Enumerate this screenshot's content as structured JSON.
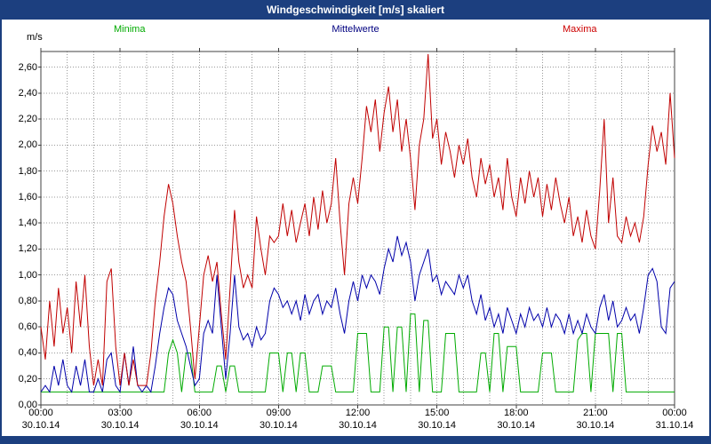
{
  "header": {
    "title": "Windgeschwindigkeit [m/s] skaliert"
  },
  "colors": {
    "title_bar": "#1c3f7f",
    "grid": "#9a9a9a",
    "frame": "#404040",
    "background": "#ffffff"
  },
  "legend": [
    {
      "label": "Minima",
      "color": "#00aa00"
    },
    {
      "label": "Mittelwerte",
      "color": "#000080"
    },
    {
      "label": "Maxima",
      "color": "#cc0000"
    }
  ],
  "chart_data": {
    "type": "line",
    "title": "Windgeschwindigkeit [m/s] skaliert",
    "ylabel": "m/s",
    "xlabel": "",
    "ylim": [
      0,
      2.72
    ],
    "ytick_step": 0.2,
    "grid": "dotted",
    "legend_position": "top",
    "yticks": [
      "0,00",
      "0,20",
      "0,40",
      "0,60",
      "0,80",
      "1,00",
      "1,20",
      "1,40",
      "1,60",
      "1,80",
      "2,00",
      "2,20",
      "2,40",
      "2,60"
    ],
    "x_hours_range": [
      0,
      24
    ],
    "x_minor_grid_hours": 1,
    "xticks": [
      {
        "hour": 0,
        "time": "00:00",
        "date": "30.10.14"
      },
      {
        "hour": 3,
        "time": "03:00",
        "date": "30.10.14"
      },
      {
        "hour": 6,
        "time": "06:00",
        "date": "30.10.14"
      },
      {
        "hour": 9,
        "time": "09:00",
        "date": "30.10.14"
      },
      {
        "hour": 12,
        "time": "12:00",
        "date": "30.10.14"
      },
      {
        "hour": 15,
        "time": "15:00",
        "date": "30.10.14"
      },
      {
        "hour": 18,
        "time": "18:00",
        "date": "30.10.14"
      },
      {
        "hour": 21,
        "time": "21:00",
        "date": "30.10.14"
      },
      {
        "hour": 24,
        "time": "00:00",
        "date": "31.10.14"
      }
    ],
    "series": [
      {
        "name": "Minima",
        "id": "minima",
        "color": "#00aa00",
        "values": [
          0.1,
          0.1,
          0.1,
          0.1,
          0.1,
          0.1,
          0.1,
          0.1,
          0.1,
          0.1,
          0.1,
          0.1,
          0.1,
          0.1,
          0.1,
          0.1,
          0.1,
          0.1,
          0.1,
          0.1,
          0.1,
          0.1,
          0.1,
          0.1,
          0.1,
          0.1,
          0.1,
          0.1,
          0.1,
          0.4,
          0.5,
          0.4,
          0.1,
          0.4,
          0.4,
          0.1,
          0.1,
          0.1,
          0.1,
          0.1,
          0.3,
          0.3,
          0.1,
          0.3,
          0.3,
          0.1,
          0.1,
          0.1,
          0.1,
          0.1,
          0.1,
          0.1,
          0.4,
          0.4,
          0.4,
          0.1,
          0.4,
          0.4,
          0.1,
          0.4,
          0.4,
          0.1,
          0.1,
          0.1,
          0.3,
          0.3,
          0.3,
          0.1,
          0.1,
          0.1,
          0.1,
          0.1,
          0.55,
          0.55,
          0.55,
          0.1,
          0.1,
          0.1,
          0.6,
          0.6,
          0.1,
          0.6,
          0.6,
          0.1,
          0.7,
          0.7,
          0.1,
          0.65,
          0.65,
          0.1,
          0.1,
          0.1,
          0.55,
          0.55,
          0.55,
          0.1,
          0.1,
          0.1,
          0.1,
          0.1,
          0.4,
          0.4,
          0.1,
          0.55,
          0.55,
          0.1,
          0.45,
          0.45,
          0.45,
          0.1,
          0.1,
          0.1,
          0.1,
          0.1,
          0.4,
          0.4,
          0.4,
          0.1,
          0.1,
          0.1,
          0.1,
          0.1,
          0.5,
          0.55,
          0.55,
          0.1,
          0.55,
          0.55,
          0.55,
          0.55,
          0.1,
          0.55,
          0.55,
          0.1,
          0.1,
          0.1,
          0.1,
          0.1,
          0.1,
          0.1,
          0.1,
          0.1,
          0.1,
          0.1,
          0.1
        ]
      },
      {
        "name": "Mittelwerte",
        "id": "mittelwerte",
        "color": "#0000aa",
        "values": [
          0.1,
          0.15,
          0.1,
          0.3,
          0.15,
          0.35,
          0.15,
          0.1,
          0.3,
          0.15,
          0.35,
          0.1,
          0.1,
          0.2,
          0.1,
          0.35,
          0.4,
          0.15,
          0.1,
          0.4,
          0.15,
          0.45,
          0.15,
          0.1,
          0.15,
          0.1,
          0.3,
          0.55,
          0.75,
          0.9,
          0.85,
          0.65,
          0.55,
          0.45,
          0.3,
          0.15,
          0.2,
          0.55,
          0.65,
          0.55,
          1.0,
          0.6,
          0.2,
          0.55,
          1.0,
          0.6,
          0.5,
          0.55,
          0.45,
          0.6,
          0.5,
          0.55,
          0.8,
          0.9,
          0.85,
          0.75,
          0.8,
          0.7,
          0.8,
          0.65,
          0.85,
          0.7,
          0.8,
          0.85,
          0.7,
          0.8,
          0.75,
          0.9,
          0.7,
          0.55,
          0.8,
          0.95,
          0.8,
          1.0,
          0.9,
          1.0,
          0.95,
          0.85,
          1.05,
          1.2,
          1.1,
          1.3,
          1.15,
          1.25,
          1.1,
          0.8,
          1.0,
          1.1,
          1.2,
          0.95,
          1.0,
          0.85,
          0.95,
          0.9,
          0.85,
          1.0,
          0.9,
          1.0,
          0.8,
          0.7,
          0.85,
          0.65,
          0.75,
          0.6,
          0.7,
          0.55,
          0.75,
          0.65,
          0.55,
          0.7,
          0.6,
          0.75,
          0.65,
          0.7,
          0.6,
          0.75,
          0.6,
          0.7,
          0.65,
          0.55,
          0.7,
          0.55,
          0.65,
          0.55,
          0.7,
          0.6,
          0.55,
          0.75,
          0.85,
          0.65,
          0.8,
          0.6,
          0.65,
          0.75,
          0.65,
          0.7,
          0.55,
          0.75,
          1.0,
          1.05,
          0.95,
          0.6,
          0.55,
          0.9,
          0.95
        ]
      },
      {
        "name": "Maxima",
        "id": "maxima",
        "color": "#c00000",
        "values": [
          0.6,
          0.35,
          0.8,
          0.45,
          0.9,
          0.55,
          0.75,
          0.4,
          0.95,
          0.6,
          1.0,
          0.45,
          0.15,
          0.35,
          0.15,
          0.95,
          1.05,
          0.45,
          0.15,
          0.4,
          0.15,
          0.35,
          0.15,
          0.15,
          0.15,
          0.4,
          0.8,
          1.1,
          1.45,
          1.7,
          1.55,
          1.3,
          1.1,
          0.95,
          0.6,
          0.2,
          0.6,
          1.0,
          1.15,
          0.95,
          1.1,
          0.7,
          0.35,
          0.9,
          1.5,
          1.1,
          0.9,
          1.0,
          0.9,
          1.45,
          1.2,
          1.0,
          1.3,
          1.25,
          1.3,
          1.55,
          1.3,
          1.5,
          1.25,
          1.4,
          1.55,
          1.3,
          1.6,
          1.35,
          1.65,
          1.4,
          1.55,
          1.9,
          1.4,
          1.0,
          1.55,
          1.75,
          1.55,
          1.9,
          2.3,
          2.1,
          2.35,
          1.95,
          2.25,
          2.45,
          2.1,
          2.35,
          1.95,
          2.2,
          1.9,
          1.5,
          2.0,
          2.2,
          2.7,
          2.05,
          2.2,
          1.85,
          2.1,
          1.95,
          1.75,
          2.0,
          1.85,
          2.05,
          1.75,
          1.6,
          1.9,
          1.7,
          1.85,
          1.6,
          1.75,
          1.5,
          1.9,
          1.6,
          1.45,
          1.75,
          1.55,
          1.8,
          1.6,
          1.75,
          1.45,
          1.7,
          1.5,
          1.75,
          1.55,
          1.4,
          1.6,
          1.3,
          1.45,
          1.25,
          1.5,
          1.3,
          1.2,
          1.65,
          2.2,
          1.4,
          1.75,
          1.3,
          1.25,
          1.45,
          1.3,
          1.4,
          1.25,
          1.45,
          1.85,
          2.15,
          1.95,
          2.1,
          1.85,
          2.4,
          1.9
        ]
      }
    ]
  }
}
